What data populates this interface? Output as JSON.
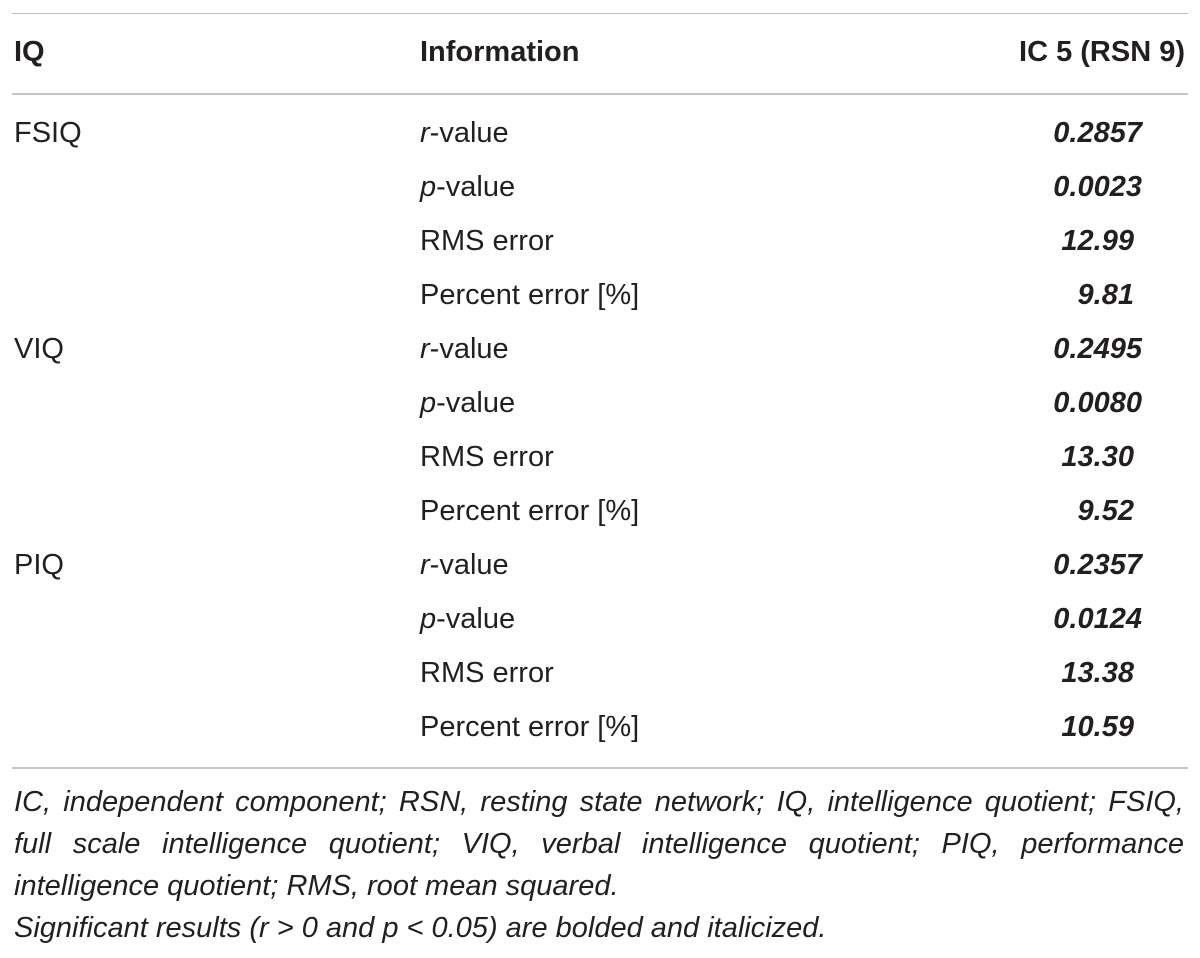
{
  "table": {
    "headers": {
      "iq": "IQ",
      "information": "Information",
      "ic": "IC 5 (RSN 9)"
    },
    "groups": [
      {
        "iq": "FSIQ",
        "rows": [
          {
            "info_prefix": "r",
            "info_suffix": "-value",
            "value": "0.2857"
          },
          {
            "info_prefix": "p",
            "info_suffix": "-value",
            "value": "0.0023"
          },
          {
            "info_prefix": "",
            "info_suffix": "RMS error",
            "value": "12.99"
          },
          {
            "info_prefix": "",
            "info_suffix": "Percent error [%]",
            "value": "9.81"
          }
        ]
      },
      {
        "iq": "VIQ",
        "rows": [
          {
            "info_prefix": "r",
            "info_suffix": "-value",
            "value": "0.2495"
          },
          {
            "info_prefix": "p",
            "info_suffix": "-value",
            "value": "0.0080"
          },
          {
            "info_prefix": "",
            "info_suffix": "RMS error",
            "value": "13.30"
          },
          {
            "info_prefix": "",
            "info_suffix": "Percent error [%]",
            "value": "9.52"
          }
        ]
      },
      {
        "iq": "PIQ",
        "rows": [
          {
            "info_prefix": "r",
            "info_suffix": "-value",
            "value": "0.2357"
          },
          {
            "info_prefix": "p",
            "info_suffix": "-value",
            "value": "0.0124"
          },
          {
            "info_prefix": "",
            "info_suffix": "RMS error",
            "value": "13.38"
          },
          {
            "info_prefix": "",
            "info_suffix": "Percent error [%]",
            "value": "10.59"
          }
        ]
      }
    ]
  },
  "footnotes": {
    "abbreviations": "IC, independent component; RSN, resting state network; IQ, intelligence quotient; FSIQ, full scale intelligence quotient; VIQ, verbal intelligence quotient; PIQ, performance intelligence quotient; RMS, root mean squared.",
    "significance": "Significant results (r > 0 and p < 0.05) are bolded and italicized."
  }
}
